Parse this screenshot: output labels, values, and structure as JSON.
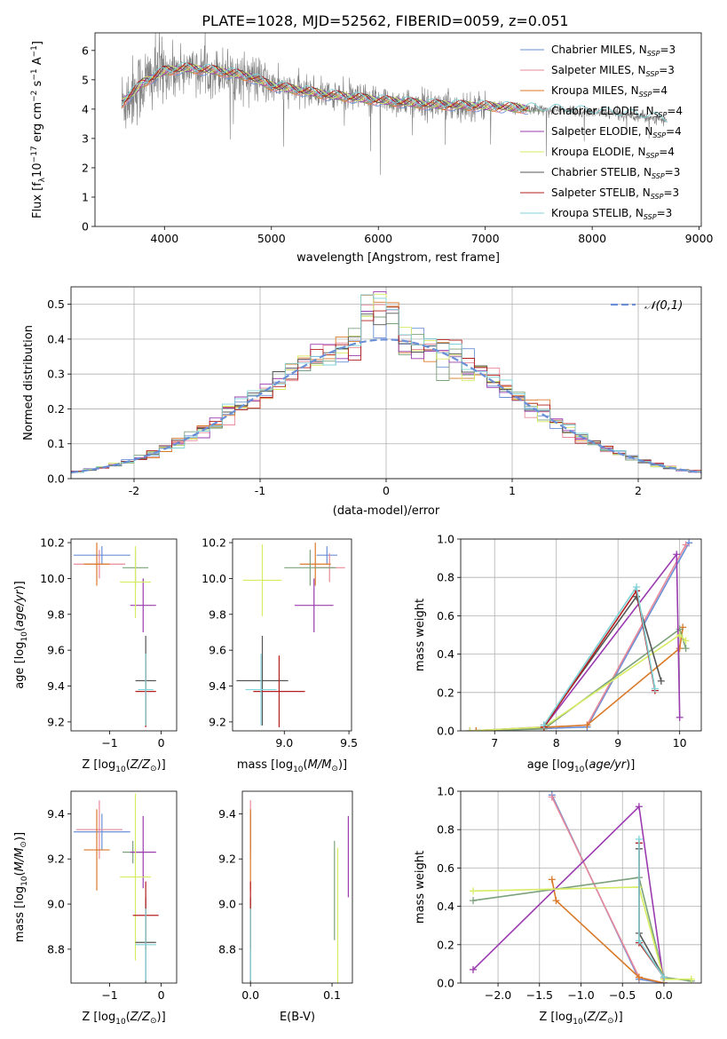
{
  "figure_title": "PLATE=1028, MJD=52562, FIBERID=0059, z=0.051",
  "colors": {
    "Chabrier MILES": "#6a8fd6",
    "Salpeter MILES": "#e98a9a",
    "Kroupa MILES": "#d97a2a",
    "Chabrier ELODIE": "#7ba27b",
    "Salpeter ELODIE": "#9b3bb0",
    "Kroupa ELODIE": "#d6ec62",
    "Chabrier STELIB": "#555555",
    "Salpeter STELIB": "#b51f1f",
    "Kroupa STELIB": "#7fd3d8",
    "data": "#808080",
    "normal": "#6a8fd6"
  },
  "chart_data": [
    {
      "id": "spectrum",
      "type": "line",
      "title": "PLATE=1028, MJD=52562, FIBERID=0059, z=0.051",
      "xlabel": "wavelength [Angstrom, rest frame]",
      "ylabel": "Flux [f_λ 10^-17 erg cm^-2 s^-1 A^-1]",
      "xlim": [
        3350,
        9020
      ],
      "ylim": [
        0,
        6.6
      ],
      "xticks": [
        4000,
        5000,
        6000,
        7000,
        8000,
        9000
      ],
      "yticks": [
        0,
        1,
        2,
        3,
        4,
        5,
        6
      ],
      "legend_position": "top-right",
      "legend": [
        {
          "label": "Chabrier MILES, N",
          "sub": "SSP",
          "tail": "=3"
        },
        {
          "label": "Salpeter MILES, N",
          "sub": "SSP",
          "tail": "=3"
        },
        {
          "label": "Kroupa MILES, N",
          "sub": "SSP",
          "tail": "=4"
        },
        {
          "label": "Chabrier ELODIE, N",
          "sub": "SSP",
          "tail": "=4"
        },
        {
          "label": "Salpeter ELODIE, N",
          "sub": "SSP",
          "tail": "=4"
        },
        {
          "label": "Kroupa ELODIE, N",
          "sub": "SSP",
          "tail": "=4"
        },
        {
          "label": "Chabrier STELIB, N",
          "sub": "SSP",
          "tail": "=3"
        },
        {
          "label": "Salpeter STELIB, N",
          "sub": "SSP",
          "tail": "=3"
        },
        {
          "label": "Kroupa STELIB, N",
          "sub": "SSP",
          "tail": "=3"
        }
      ],
      "continuum_knots": [
        [
          3600,
          4.2
        ],
        [
          3800,
          4.9
        ],
        [
          4000,
          5.3
        ],
        [
          4200,
          5.4
        ],
        [
          4500,
          5.3
        ],
        [
          4800,
          5.1
        ],
        [
          5000,
          4.8
        ],
        [
          5500,
          4.5
        ],
        [
          6000,
          4.3
        ],
        [
          6500,
          4.15
        ],
        [
          7000,
          4.1
        ],
        [
          7500,
          4.0
        ],
        [
          8000,
          3.9
        ],
        [
          8500,
          3.75
        ],
        [
          8700,
          3.6
        ]
      ],
      "data_range": [
        3600,
        8700
      ],
      "model_range": [
        3600,
        7400
      ]
    },
    {
      "id": "residual_hist",
      "type": "line",
      "xlabel": "(data-model)/error",
      "ylabel": "Normed distribution",
      "xlim": [
        -2.5,
        2.5
      ],
      "ylim": [
        0,
        0.55
      ],
      "xticks": [
        -2,
        -1,
        0,
        1,
        2
      ],
      "yticks": [
        0,
        0.1,
        0.2,
        0.3,
        0.4,
        0.5
      ],
      "grid": true,
      "legend_position": "top-right",
      "legend": [
        {
          "label": "𝒩(0,1)",
          "style": "dashed"
        }
      ],
      "bin_width": 0.1
    },
    {
      "id": "age_vs_Z",
      "type": "scatter",
      "xlabel": "Z [log10(Z/Z☉)]",
      "ylabel": "age [log10(age/yr)]",
      "xlim": [
        -1.75,
        0.3
      ],
      "ylim": [
        9.15,
        10.22
      ],
      "xticks": [
        -1,
        0
      ],
      "yticks": [
        9.2,
        9.4,
        9.6,
        9.8,
        10.0,
        10.2
      ],
      "points": [
        {
          "name": "Chabrier MILES",
          "x": -1.15,
          "y": 10.13,
          "xerr": 0.55,
          "yerr": 0.05
        },
        {
          "name": "Salpeter MILES",
          "x": -1.2,
          "y": 10.08,
          "xerr": 0.5,
          "yerr": 0.08
        },
        {
          "name": "Kroupa MILES",
          "x": -1.25,
          "y": 10.08,
          "xerr": 0.25,
          "yerr": 0.12
        },
        {
          "name": "Chabrier ELODIE",
          "x": -0.5,
          "y": 10.06,
          "xerr": 0.25,
          "yerr": 0.1
        },
        {
          "name": "Salpeter ELODIE",
          "x": -0.35,
          "y": 9.85,
          "xerr": 0.25,
          "yerr": 0.15
        },
        {
          "name": "Kroupa ELODIE",
          "x": -0.5,
          "y": 9.98,
          "xerr": 0.3,
          "yerr": 0.2
        },
        {
          "name": "Chabrier STELIB",
          "x": -0.3,
          "y": 9.43,
          "xerr": 0.2,
          "yerr": 0.25
        },
        {
          "name": "Salpeter STELIB",
          "x": -0.3,
          "y": 9.37,
          "xerr": 0.2,
          "yerr": 0.2
        },
        {
          "name": "Kroupa STELIB",
          "x": -0.3,
          "y": 9.38,
          "xerr": 0.15,
          "yerr": 0.2
        }
      ]
    },
    {
      "id": "age_vs_mass",
      "type": "scatter",
      "xlabel": "mass [log10(M/M☉)]",
      "ylabel": "",
      "xlim": [
        8.6,
        9.52
      ],
      "ylim": [
        9.15,
        10.22
      ],
      "xticks": [
        9.0,
        9.5
      ],
      "yticks": [
        9.2,
        9.4,
        9.6,
        9.8,
        10.0,
        10.2
      ],
      "points": [
        {
          "name": "Chabrier MILES",
          "x": 9.33,
          "y": 10.13,
          "xerr": 0.08,
          "yerr": 0.05
        },
        {
          "name": "Salpeter MILES",
          "x": 9.35,
          "y": 10.06,
          "xerr": 0.12,
          "yerr": 0.08
        },
        {
          "name": "Kroupa MILES",
          "x": 9.24,
          "y": 10.08,
          "xerr": 0.12,
          "yerr": 0.12
        },
        {
          "name": "Chabrier ELODIE",
          "x": 9.2,
          "y": 10.06,
          "xerr": 0.2,
          "yerr": 0.1
        },
        {
          "name": "Salpeter ELODIE",
          "x": 9.23,
          "y": 9.85,
          "xerr": 0.15,
          "yerr": 0.15
        },
        {
          "name": "Kroupa ELODIE",
          "x": 8.83,
          "y": 9.99,
          "xerr": 0.15,
          "yerr": 0.2
        },
        {
          "name": "Chabrier STELIB",
          "x": 8.83,
          "y": 9.43,
          "xerr": 0.2,
          "yerr": 0.25
        },
        {
          "name": "Salpeter STELIB",
          "x": 8.96,
          "y": 9.37,
          "xerr": 0.2,
          "yerr": 0.2
        },
        {
          "name": "Kroupa STELIB",
          "x": 8.82,
          "y": 9.38,
          "xerr": 0.12,
          "yerr": 0.2
        }
      ]
    },
    {
      "id": "weight_vs_age",
      "type": "line",
      "xlabel": "age [log10(age/yr)]",
      "ylabel": "mass weight",
      "xlim": [
        6.45,
        10.35
      ],
      "ylim": [
        0,
        1
      ],
      "xticks": [
        7,
        8,
        9,
        10
      ],
      "yticks": [
        0,
        0.2,
        0.4,
        0.6,
        0.8,
        1.0
      ],
      "grid": true,
      "series": [
        {
          "name": "Chabrier MILES",
          "x": [
            6.7,
            8.5,
            10.15
          ],
          "y": [
            0,
            0.02,
            0.98
          ]
        },
        {
          "name": "Salpeter MILES",
          "x": [
            6.7,
            8.5,
            10.1
          ],
          "y": [
            0,
            0.03,
            0.97
          ]
        },
        {
          "name": "Kroupa MILES",
          "x": [
            6.7,
            8.5,
            10.0,
            10.05
          ],
          "y": [
            0,
            0.03,
            0.43,
            0.54
          ]
        },
        {
          "name": "Chabrier ELODIE",
          "x": [
            6.6,
            7.8,
            10.0,
            10.1
          ],
          "y": [
            0,
            0.01,
            0.53,
            0.43
          ]
        },
        {
          "name": "Salpeter ELODIE",
          "x": [
            6.6,
            7.8,
            9.95,
            10.0
          ],
          "y": [
            0,
            0.02,
            0.92,
            0.07
          ]
        },
        {
          "name": "Kroupa ELODIE",
          "x": [
            6.6,
            7.8,
            10.0,
            10.1
          ],
          "y": [
            0,
            0.02,
            0.5,
            0.47
          ]
        },
        {
          "name": "Chabrier STELIB",
          "x": [
            7.8,
            9.3,
            9.7
          ],
          "y": [
            0.03,
            0.7,
            0.26
          ]
        },
        {
          "name": "Salpeter STELIB",
          "x": [
            7.8,
            9.3,
            9.6
          ],
          "y": [
            0.02,
            0.73,
            0.21
          ]
        },
        {
          "name": "Kroupa STELIB",
          "x": [
            7.8,
            9.3,
            9.6
          ],
          "y": [
            0.03,
            0.75,
            0.22
          ]
        }
      ]
    },
    {
      "id": "mass_vs_Z",
      "type": "scatter",
      "xlabel": "Z [log10(Z/Z☉)]",
      "ylabel": "mass [log10(M/M☉)]",
      "xlim": [
        -1.75,
        0.3
      ],
      "ylim": [
        8.65,
        9.5
      ],
      "xticks": [
        -1,
        0
      ],
      "yticks": [
        8.8,
        9.0,
        9.2,
        9.4
      ],
      "points": [
        {
          "name": "Chabrier MILES",
          "x": -1.15,
          "y": 9.32,
          "xerr": 0.55,
          "yerr": 0.08
        },
        {
          "name": "Salpeter MILES",
          "x": -1.2,
          "y": 9.33,
          "xerr": 0.45,
          "yerr": 0.13
        },
        {
          "name": "Kroupa MILES",
          "x": -1.25,
          "y": 9.24,
          "xerr": 0.25,
          "yerr": 0.18
        },
        {
          "name": "Chabrier ELODIE",
          "x": -0.55,
          "y": 9.23,
          "xerr": 0.2,
          "yerr": 0.05
        },
        {
          "name": "Salpeter ELODIE",
          "x": -0.35,
          "y": 9.23,
          "xerr": 0.25,
          "yerr": 0.16
        },
        {
          "name": "Kroupa ELODIE",
          "x": -0.5,
          "y": 9.12,
          "xerr": 0.3,
          "yerr": 0.37
        },
        {
          "name": "Chabrier STELIB",
          "x": -0.3,
          "y": 8.83,
          "xerr": 0.2,
          "yerr": 0.2
        },
        {
          "name": "Salpeter STELIB",
          "x": -0.3,
          "y": 8.95,
          "xerr": 0.25,
          "yerr": 0.15
        },
        {
          "name": "Kroupa STELIB",
          "x": -0.3,
          "y": 8.82,
          "xerr": 0.2,
          "yerr": 0.16
        }
      ]
    },
    {
      "id": "mass_vs_ebv",
      "type": "scatter",
      "xlabel": "E(B-V)",
      "ylabel": "",
      "xlim": [
        -0.01,
        0.125
      ],
      "ylim": [
        8.65,
        9.5
      ],
      "xticks": [
        0.0,
        0.1
      ],
      "yticks": [
        8.8,
        9.0,
        9.2,
        9.4
      ],
      "points": [
        {
          "name": "Chabrier MILES",
          "x": 0.0,
          "y": 9.32,
          "yerr": 0.08
        },
        {
          "name": "Salpeter MILES",
          "x": 0.0,
          "y": 9.33,
          "yerr": 0.13
        },
        {
          "name": "Kroupa MILES",
          "x": 0.0,
          "y": 9.24,
          "yerr": 0.18
        },
        {
          "name": "Chabrier ELODIE",
          "x": 0.103,
          "y": 9.06,
          "yerr": 0.22
        },
        {
          "name": "Salpeter ELODIE",
          "x": 0.12,
          "y": 9.21,
          "yerr": 0.18
        },
        {
          "name": "Kroupa ELODIE",
          "x": 0.107,
          "y": 8.95,
          "yerr": 0.3
        },
        {
          "name": "Chabrier STELIB",
          "x": 0.0,
          "y": 8.83,
          "yerr": 0.2
        },
        {
          "name": "Salpeter STELIB",
          "x": 0.0,
          "y": 8.95,
          "yerr": 0.15
        },
        {
          "name": "Kroupa STELIB",
          "x": 0.0,
          "y": 8.82,
          "yerr": 0.16
        }
      ]
    },
    {
      "id": "weight_vs_Z",
      "type": "line",
      "xlabel": "Z [log10(Z/Z☉)]",
      "ylabel": "mass weight",
      "xlim": [
        -2.45,
        0.45
      ],
      "ylim": [
        0,
        1
      ],
      "xticks": [
        -2.0,
        -1.5,
        -1.0,
        -0.5,
        0.0
      ],
      "yticks": [
        0,
        0.2,
        0.4,
        0.6,
        0.8,
        1.0
      ],
      "grid": true,
      "series": [
        {
          "name": "Chabrier MILES",
          "x": [
            -1.35,
            -0.3,
            0.0
          ],
          "y": [
            0.98,
            0.02,
            0.0
          ]
        },
        {
          "name": "Salpeter MILES",
          "x": [
            -1.35,
            -0.3,
            0.0
          ],
          "y": [
            0.97,
            0.03,
            0.0
          ]
        },
        {
          "name": "Kroupa MILES",
          "x": [
            -1.35,
            -1.3,
            -0.3,
            0.0
          ],
          "y": [
            0.54,
            0.43,
            0.03,
            0.0
          ]
        },
        {
          "name": "Chabrier ELODIE",
          "x": [
            -2.3,
            -0.3,
            0.0,
            0.33
          ],
          "y": [
            0.43,
            0.55,
            0.03,
            0.01
          ]
        },
        {
          "name": "Salpeter ELODIE",
          "x": [
            -2.3,
            -0.3,
            0.0
          ],
          "y": [
            0.07,
            0.92,
            0.0
          ]
        },
        {
          "name": "Kroupa ELODIE",
          "x": [
            -2.3,
            -0.3,
            0.0,
            0.33
          ],
          "y": [
            0.48,
            0.5,
            0.02,
            0.02
          ]
        },
        {
          "name": "Chabrier STELIB",
          "x": [
            -0.3,
            -0.3,
            0.0
          ],
          "y": [
            0.7,
            0.26,
            0.03
          ]
        },
        {
          "name": "Salpeter STELIB",
          "x": [
            -0.3,
            -0.3,
            0.0
          ],
          "y": [
            0.73,
            0.21,
            0.03
          ]
        },
        {
          "name": "Kroupa STELIB",
          "x": [
            -0.3,
            -0.3,
            0.0
          ],
          "y": [
            0.75,
            0.22,
            0.03
          ]
        }
      ]
    }
  ]
}
